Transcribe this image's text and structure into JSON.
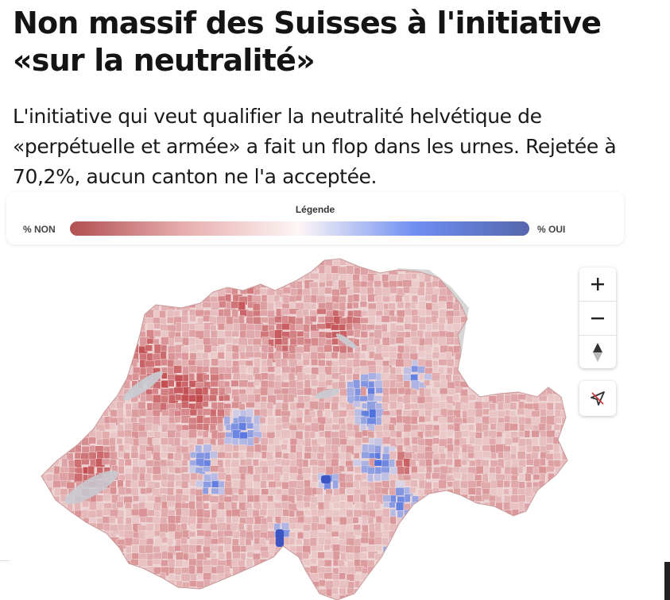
{
  "article": {
    "headline": "Non massif des Suisses à l'initiative «sur la neutralité»",
    "lede": "L'initiative qui veut qualifier la neutralité helvétique de «perpétuelle et armée» a fait un flop dans les urnes. Rejetée à 70,2%, aucun canton ne l'a acceptée."
  },
  "legend": {
    "title": "Légende",
    "left_label": "% NON",
    "right_label": "% OUI",
    "gradient_colors": [
      "#b24f52",
      "#e8aeae",
      "#fdf6f6",
      "#6f8ff2",
      "#5566ad"
    ]
  },
  "map": {
    "region": "Switzerland",
    "non_color": "#c24a4e",
    "oui_color": "#4b6fe0",
    "neutral_color": "#f3e4e4",
    "outside_color": "#d6d6d6",
    "lake_color": "#c8cdd4"
  },
  "controls": {
    "zoom_in_icon": "plus-icon",
    "zoom_out_icon": "minus-icon",
    "compass_icon": "compass-icon",
    "geolocate_icon": "geolocate-off-icon"
  }
}
